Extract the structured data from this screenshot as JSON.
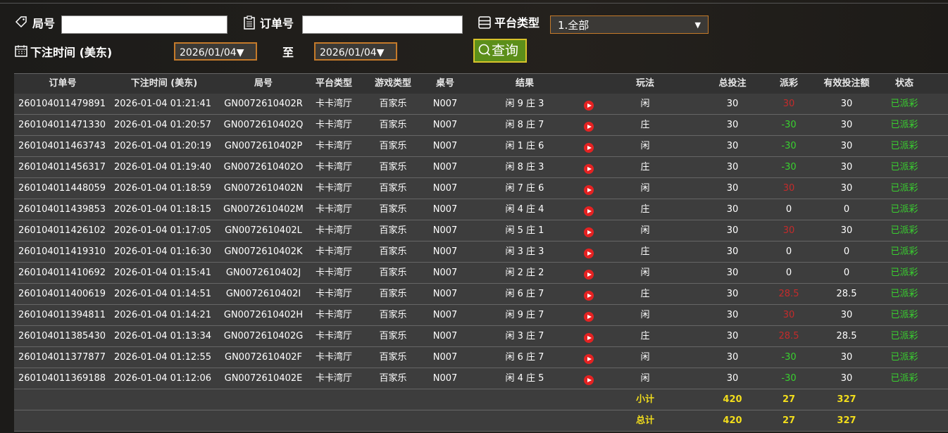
{
  "filters": {
    "round_label": "局号",
    "order_label": "订单号",
    "platform_label": "平台类型",
    "platform_value": "1.全部",
    "time_label": "下注时间 (美东)",
    "date_from": "2026/01/04",
    "date_sep": "至",
    "date_to": "2026/01/04",
    "query_button": "查询"
  },
  "table": {
    "columns": [
      "订单号",
      "下注时间 (美东)",
      "局号",
      "平台类型",
      "游戏类型",
      "桌号",
      "结果",
      "玩法",
      "总投注",
      "派彩",
      "有效投注额",
      "状态"
    ],
    "rows": [
      [
        "260104011479891",
        "2026-01-04 01:21:41",
        "GN0072610402R",
        "卡卡湾厅",
        "百家乐",
        "N007",
        "闲 9 庄 3",
        "闲",
        30,
        30,
        30,
        "已派彩"
      ],
      [
        "260104011471330",
        "2026-01-04 01:20:57",
        "GN0072610402Q",
        "卡卡湾厅",
        "百家乐",
        "N007",
        "闲 8 庄 7",
        "庄",
        30,
        -30,
        30,
        "已派彩"
      ],
      [
        "260104011463743",
        "2026-01-04 01:20:19",
        "GN0072610402P",
        "卡卡湾厅",
        "百家乐",
        "N007",
        "闲 1 庄 6",
        "闲",
        30,
        -30,
        30,
        "已派彩"
      ],
      [
        "260104011456317",
        "2026-01-04 01:19:40",
        "GN0072610402O",
        "卡卡湾厅",
        "百家乐",
        "N007",
        "闲 8 庄 3",
        "庄",
        30,
        -30,
        30,
        "已派彩"
      ],
      [
        "260104011448059",
        "2026-01-04 01:18:59",
        "GN0072610402N",
        "卡卡湾厅",
        "百家乐",
        "N007",
        "闲 7 庄 6",
        "闲",
        30,
        30,
        30,
        "已派彩"
      ],
      [
        "260104011439853",
        "2026-01-04 01:18:15",
        "GN0072610402M",
        "卡卡湾厅",
        "百家乐",
        "N007",
        "闲 4 庄 4",
        "庄",
        30,
        0,
        0,
        "已派彩"
      ],
      [
        "260104011426102",
        "2026-01-04 01:17:05",
        "GN0072610402L",
        "卡卡湾厅",
        "百家乐",
        "N007",
        "闲 5 庄 1",
        "闲",
        30,
        30,
        30,
        "已派彩"
      ],
      [
        "260104011419310",
        "2026-01-04 01:16:30",
        "GN0072610402K",
        "卡卡湾厅",
        "百家乐",
        "N007",
        "闲 3 庄 3",
        "庄",
        30,
        0,
        0,
        "已派彩"
      ],
      [
        "260104011410692",
        "2026-01-04 01:15:41",
        "GN0072610402J",
        "卡卡湾厅",
        "百家乐",
        "N007",
        "闲 2 庄 2",
        "闲",
        30,
        0,
        0,
        "已派彩"
      ],
      [
        "260104011400619",
        "2026-01-04 01:14:51",
        "GN0072610402I",
        "卡卡湾厅",
        "百家乐",
        "N007",
        "闲 6 庄 7",
        "庄",
        30,
        28.5,
        28.5,
        "已派彩"
      ],
      [
        "260104011394811",
        "2026-01-04 01:14:21",
        "GN0072610402H",
        "卡卡湾厅",
        "百家乐",
        "N007",
        "闲 9 庄 7",
        "闲",
        30,
        30,
        30,
        "已派彩"
      ],
      [
        "260104011385430",
        "2026-01-04 01:13:34",
        "GN0072610402G",
        "卡卡湾厅",
        "百家乐",
        "N007",
        "闲 3 庄 7",
        "庄",
        30,
        28.5,
        28.5,
        "已派彩"
      ],
      [
        "260104011377877",
        "2026-01-04 01:12:55",
        "GN0072610402F",
        "卡卡湾厅",
        "百家乐",
        "N007",
        "闲 6 庄 7",
        "闲",
        30,
        -30,
        30,
        "已派彩"
      ],
      [
        "260104011369188",
        "2026-01-04 01:12:06",
        "GN0072610402E",
        "卡卡湾厅",
        "百家乐",
        "N007",
        "闲 4 庄 5",
        "闲",
        30,
        -30,
        30,
        "已派彩"
      ]
    ],
    "subtotal": {
      "label": "小计",
      "bet": 420,
      "payout": 27,
      "valid": 327
    },
    "total": {
      "label": "总计",
      "bet": 420,
      "payout": 27,
      "valid": 327
    }
  }
}
